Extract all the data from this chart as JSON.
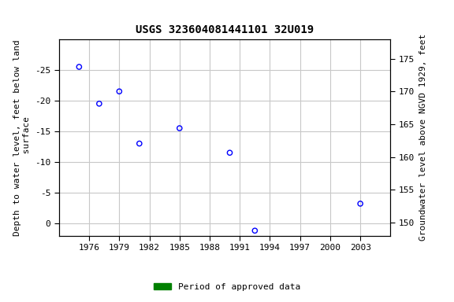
{
  "title": "USGS 323604081441101 32U019",
  "scatter_x": [
    1975,
    1977,
    1979,
    1981,
    1985,
    1990,
    1992.5,
    2003
  ],
  "scatter_y": [
    -25.5,
    -19.5,
    -21.5,
    -13,
    -15.5,
    -11.5,
    1.2,
    -3.2
  ],
  "scatter_color": "blue",
  "marker_size": 4.5,
  "marker_facecolor": "none",
  "marker_edgecolor": "blue",
  "marker_linewidth": 1.0,
  "green_bar_x": [
    1975,
    1977,
    1979,
    1981,
    1985,
    1990,
    1992.5,
    2003
  ],
  "green_bar_color": "#008000",
  "xlabel": "",
  "ylabel_left": "Depth to water level, feet below land\n surface",
  "ylabel_right": "Groundwater level above NGVD 1929, feet",
  "ylim_left_top": -30,
  "ylim_left_bottom": 2,
  "ylim_right_bottom": 148,
  "ylim_right_top": 178,
  "xlim": [
    1973,
    2006
  ],
  "xticks": [
    1976,
    1979,
    1982,
    1985,
    1988,
    1991,
    1994,
    1997,
    2000,
    2003
  ],
  "yticks_left": [
    0,
    -5,
    -10,
    -15,
    -20,
    -25
  ],
  "yticks_right": [
    150,
    155,
    160,
    165,
    170,
    175
  ],
  "legend_label": "Period of approved data",
  "legend_color": "#008000",
  "grid_color": "#c8c8c8",
  "bg_color": "#ffffff",
  "title_fontsize": 10,
  "label_fontsize": 8,
  "tick_fontsize": 8
}
